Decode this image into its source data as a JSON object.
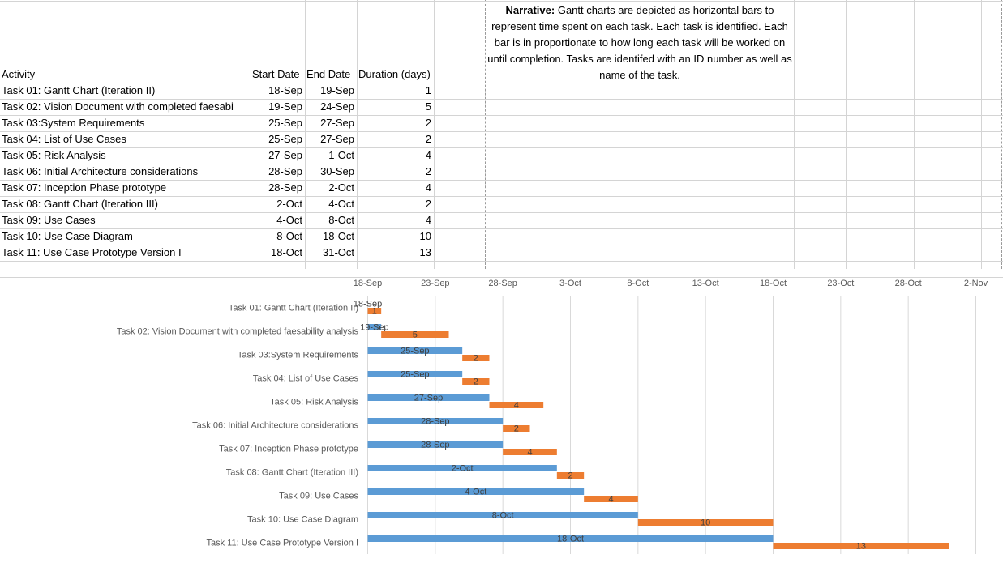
{
  "table": {
    "headers": {
      "activity": "Activity",
      "start": "Start Date",
      "end": "End Date",
      "duration": "Duration (days)"
    },
    "rows": [
      {
        "activity": "Task 01: Gantt Chart (Iteration II)",
        "start": "18-Sep",
        "end": "19-Sep",
        "duration": "1"
      },
      {
        "activity": "Task 02: Vision Document with completed faesabi",
        "start": "19-Sep",
        "end": "24-Sep",
        "duration": "5"
      },
      {
        "activity": "Task 03:System Requirements",
        "start": "25-Sep",
        "end": "27-Sep",
        "duration": "2"
      },
      {
        "activity": "Task 04: List of Use Cases",
        "start": "25-Sep",
        "end": "27-Sep",
        "duration": "2"
      },
      {
        "activity": "Task 05: Risk Analysis",
        "start": "27-Sep",
        "end": "1-Oct",
        "duration": "4"
      },
      {
        "activity": "Task 06: Initial Architecture considerations",
        "start": "28-Sep",
        "end": "30-Sep",
        "duration": "2"
      },
      {
        "activity": "Task 07: Inception Phase prototype",
        "start": "28-Sep",
        "end": "2-Oct",
        "duration": "4"
      },
      {
        "activity": "Task 08: Gantt Chart (Iteration III)",
        "start": "2-Oct",
        "end": "4-Oct",
        "duration": "2"
      },
      {
        "activity": "Task 09: Use Cases",
        "start": "4-Oct",
        "end": "8-Oct",
        "duration": "4"
      },
      {
        "activity": "Task 10: Use Case Diagram",
        "start": "8-Oct",
        "end": "18-Oct",
        "duration": "10"
      },
      {
        "activity": "Task 11: Use Case Prototype Version I",
        "start": "18-Oct",
        "end": "31-Oct",
        "duration": "13"
      }
    ]
  },
  "narrative": {
    "label": "Narrative:",
    "text": " Gantt charts are depicted as horizontal bars to represent time spent on each task. Each task is identified. Each bar is in proportionate to how long each task will be worked on until completion. Tasks are identifed with an ID number as well as name of the task."
  },
  "chart_data": {
    "type": "bar",
    "orientation": "horizontal",
    "stacked": true,
    "categories": [
      "Task 01: Gantt Chart (Iteration II)",
      "Task 02: Vision Document with completed faesability analysis",
      "Task 03:System Requirements",
      "Task 04: List of Use Cases",
      "Task 05: Risk Analysis",
      "Task 06: Initial Architecture considerations",
      "Task 07: Inception Phase prototype",
      "Task 08: Gantt Chart (Iteration III)",
      "Task 09: Use Cases",
      "Task 10: Use Case Diagram",
      "Task 11: Use Case Prototype Version I"
    ],
    "x_ticks": [
      "18-Sep",
      "23-Sep",
      "28-Sep",
      "3-Oct",
      "8-Oct",
      "13-Oct",
      "18-Oct",
      "23-Oct",
      "28-Oct",
      "2-Nov"
    ],
    "series": [
      {
        "color": "#5b9bd5",
        "values": [
          "18-Sep",
          "19-Sep",
          "25-Sep",
          "25-Sep",
          "27-Sep",
          "28-Sep",
          "28-Sep",
          "2-Oct",
          "4-Oct",
          "8-Oct",
          "18-Oct"
        ],
        "labels": [
          "18-Sep",
          "19-Sep",
          "25-Sep",
          "25-Sep",
          "27-Sep",
          "28-Sep",
          "28-Sep",
          "2-Oct",
          "4-Oct",
          "8-Oct",
          "18-Oct"
        ]
      },
      {
        "color": "#ed7d31",
        "values": [
          1,
          5,
          2,
          2,
          4,
          2,
          4,
          2,
          4,
          10,
          13
        ],
        "labels": [
          "1",
          "5",
          "2",
          "2",
          "4",
          "2",
          "4",
          "2",
          "4",
          "10",
          "13"
        ]
      }
    ],
    "xlim": [
      "18-Sep",
      "2-Nov"
    ],
    "grid": true,
    "legend": "none"
  }
}
